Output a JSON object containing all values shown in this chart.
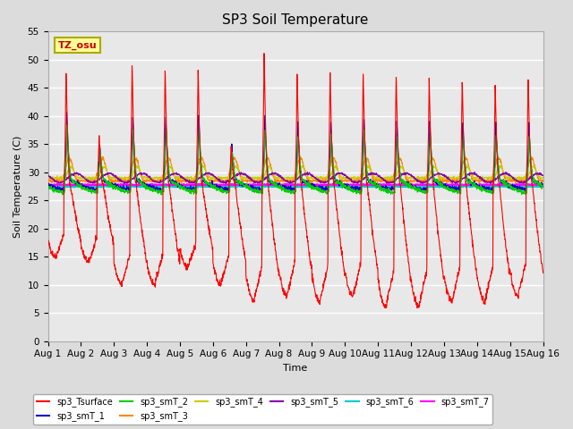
{
  "title": "SP3 Soil Temperature",
  "xlabel": "Time",
  "ylabel": "Soil Temperature (C)",
  "ylim": [
    0,
    55
  ],
  "yticks": [
    0,
    5,
    10,
    15,
    20,
    25,
    30,
    35,
    40,
    45,
    50,
    55
  ],
  "x_labels": [
    "Aug 1",
    "Aug 2",
    "Aug 3",
    "Aug 4",
    "Aug 5",
    "Aug 6",
    "Aug 7",
    "Aug 8",
    "Aug 9",
    "Aug 10",
    "Aug 11",
    "Aug 12",
    "Aug 13",
    "Aug 14",
    "Aug 15",
    "Aug 16"
  ],
  "tz_label": "TZ_osu",
  "series_colors": {
    "sp3_Tsurface": "#FF0000",
    "sp3_smT_1": "#0000CC",
    "sp3_smT_2": "#00CC00",
    "sp3_smT_3": "#FF8800",
    "sp3_smT_4": "#CCCC00",
    "sp3_smT_5": "#8800AA",
    "sp3_smT_6": "#00CCCC",
    "sp3_smT_7": "#FF00FF"
  },
  "bg_color": "#DCDCDC",
  "plot_bg": "#E8E8E8",
  "grid_color": "#FFFFFF",
  "legend_items": [
    {
      "label": "sp3_Tsurface",
      "color": "#FF0000"
    },
    {
      "label": "sp3_smT_1",
      "color": "#0000CC"
    },
    {
      "label": "sp3_smT_2",
      "color": "#00CC00"
    },
    {
      "label": "sp3_smT_3",
      "color": "#FF8800"
    },
    {
      "label": "sp3_smT_4",
      "color": "#CCCC00"
    },
    {
      "label": "sp3_smT_5",
      "color": "#8800AA"
    },
    {
      "label": "sp3_smT_6",
      "color": "#00CCCC"
    },
    {
      "label": "sp3_smT_7",
      "color": "#FF00FF"
    }
  ]
}
